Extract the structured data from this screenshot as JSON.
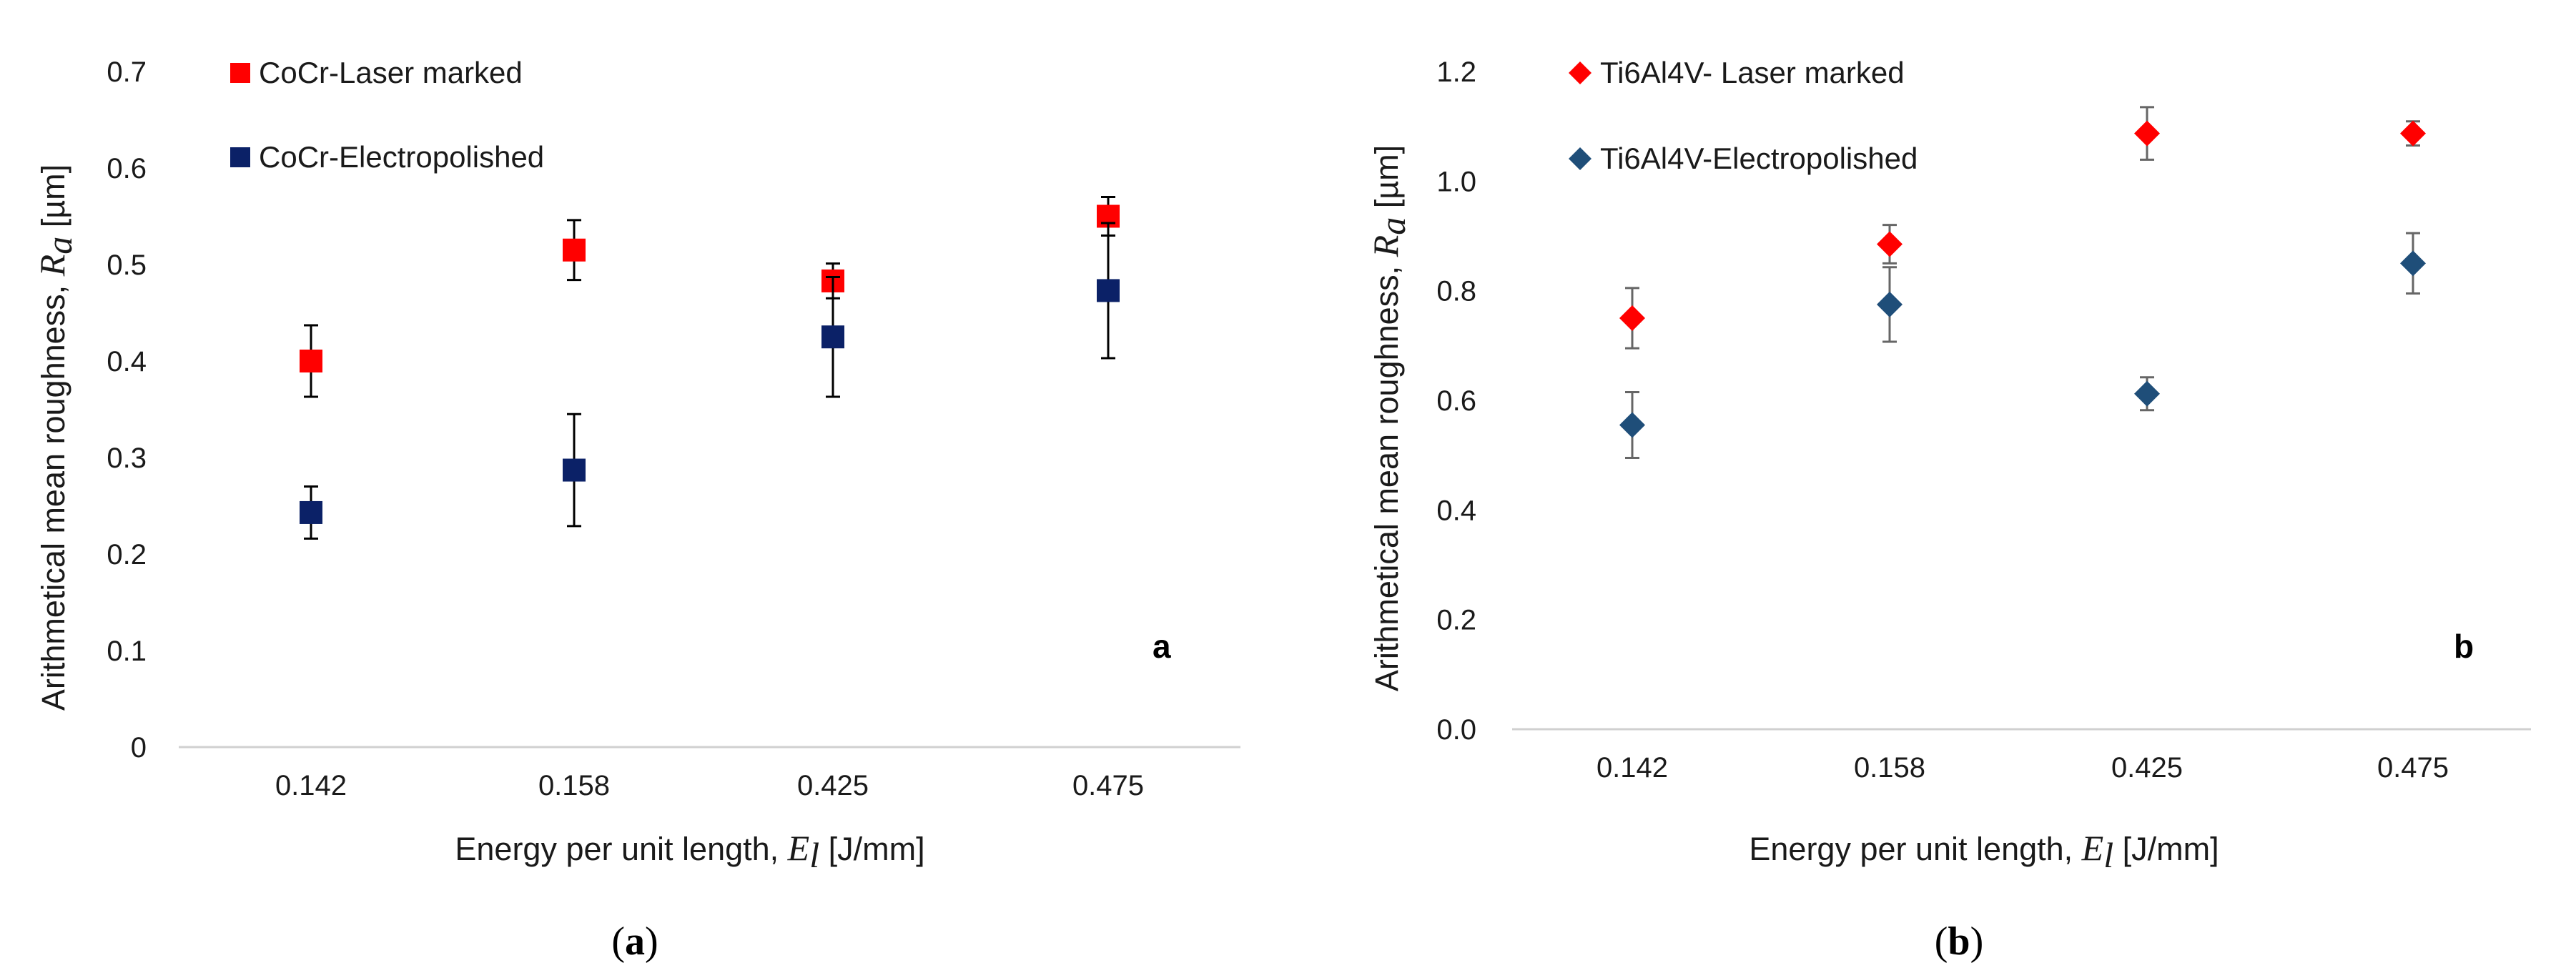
{
  "chart_data": [
    {
      "type": "scatter",
      "categories": [
        "0.142",
        "0.158",
        "0.425",
        "0.475"
      ],
      "ylim": [
        0,
        0.7
      ],
      "yticks": [
        "0.7",
        "0.6",
        "0.5",
        "0.4",
        "0.3",
        "0.2",
        "0.1",
        "0"
      ],
      "ylabel_text": "Arithmetical mean roughness, ",
      "ylabel_symbol": "R",
      "ylabel_sub": "a",
      "ylabel_unit": " [µm]",
      "xlabel_text": "Energy per unit length, ",
      "xlabel_symbol": "E",
      "xlabel_sub": "l",
      "xlabel_unit": " [J/mm]",
      "panel_tag": "a",
      "caption_open": "(",
      "caption_letter": "a",
      "caption_close": ")",
      "series": [
        {
          "name": "CoCr-Laser marked",
          "marker": "square",
          "color": "#ff0000",
          "errcolor": "#000000",
          "values": [
            0.4,
            0.515,
            0.483,
            0.55
          ],
          "errors": [
            0.037,
            0.031,
            0.018,
            0.02
          ]
        },
        {
          "name": "CoCr-Electropolished",
          "marker": "square",
          "color": "#0b2167",
          "errcolor": "#000000",
          "values": [
            0.243,
            0.287,
            0.425,
            0.473
          ],
          "errors": [
            0.027,
            0.058,
            0.062,
            0.07
          ]
        }
      ]
    },
    {
      "type": "scatter",
      "categories": [
        "0.142",
        "0.158",
        "0.425",
        "0.475"
      ],
      "ylim": [
        0,
        1.2
      ],
      "yticks": [
        "1.2",
        "1.0",
        "0.8",
        "0.6",
        "0.4",
        "0.2",
        "0.0"
      ],
      "ylabel_text": "Arithmetical mean roughness, ",
      "ylabel_symbol": "R",
      "ylabel_sub": "a",
      "ylabel_unit": " [µm]",
      "xlabel_text": "Energy per unit length, ",
      "xlabel_symbol": "E",
      "xlabel_sub": "l",
      "xlabel_unit": " [J/mm]",
      "panel_tag": "b",
      "caption_open": "(",
      "caption_letter": "b",
      "caption_close": ")",
      "series": [
        {
          "name": "Ti6Al4V- Laser marked",
          "marker": "diamond",
          "color": "#ff0000",
          "errcolor": "#666666",
          "values": [
            0.75,
            0.885,
            1.087,
            1.087
          ],
          "errors": [
            0.055,
            0.035,
            0.048,
            0.022
          ]
        },
        {
          "name": "Ti6Al4V-Electropolished",
          "marker": "diamond",
          "color": "#1f4e79",
          "errcolor": "#666666",
          "values": [
            0.555,
            0.775,
            0.612,
            0.85
          ],
          "errors": [
            0.06,
            0.068,
            0.03,
            0.055
          ]
        }
      ]
    }
  ]
}
